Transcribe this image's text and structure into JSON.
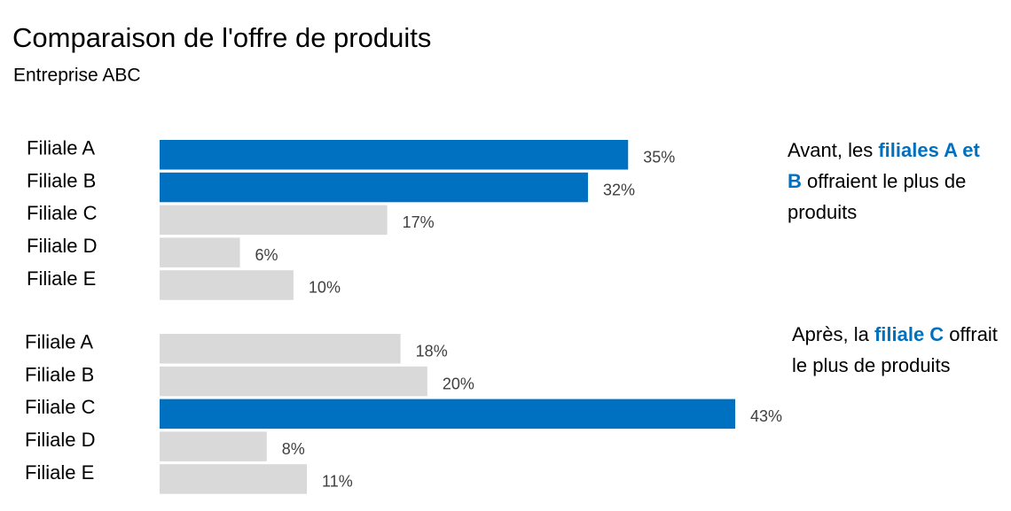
{
  "title": "Comparaison de l'offre de produits",
  "subtitle": "Entreprise ABC",
  "chart_data": [
    {
      "type": "bar",
      "orientation": "horizontal",
      "categories": [
        "Filiale A",
        "Filiale B",
        "Filiale C",
        "Filiale D",
        "Filiale E"
      ],
      "values": [
        35,
        32,
        17,
        6,
        10
      ],
      "value_labels": [
        "35%",
        "32%",
        "17%",
        "6%",
        "10%"
      ],
      "colors": [
        "#0070c0",
        "#0070c0",
        "#d9d9d9",
        "#d9d9d9",
        "#d9d9d9"
      ],
      "annotation": [
        {
          "text": "Avant, les "
        },
        {
          "text": "filiales A et B",
          "color": "#0070c0",
          "bold": true
        },
        {
          "text": " offraient le plus de produits"
        }
      ]
    },
    {
      "type": "bar",
      "orientation": "horizontal",
      "categories": [
        "Filiale A",
        "Filiale B",
        "Filiale C",
        "Filiale D",
        "Filiale E"
      ],
      "values": [
        18,
        20,
        43,
        8,
        11
      ],
      "value_labels": [
        "18%",
        "20%",
        "43%",
        "8%",
        "11%"
      ],
      "colors": [
        "#d9d9d9",
        "#d9d9d9",
        "#0070c0",
        "#d9d9d9",
        "#d9d9d9"
      ],
      "annotation": [
        {
          "text": "Après, la "
        },
        {
          "text": "filiale C",
          "color": "#0070c0",
          "bold": true
        },
        {
          "text": " offrait le plus de produits"
        }
      ]
    }
  ]
}
